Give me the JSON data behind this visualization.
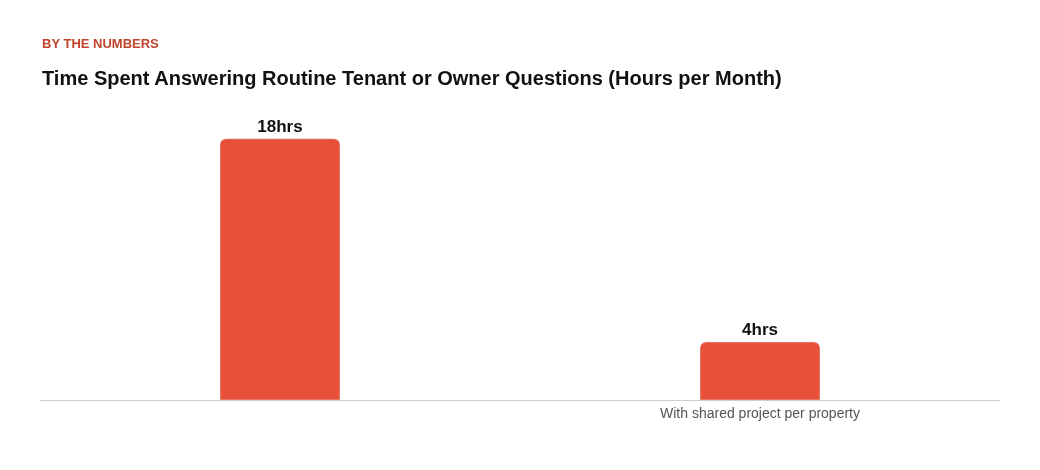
{
  "chart_data": {
    "type": "bar",
    "title": "Time Spent Answering Routine Tenant or Owner Questions (Hours per Month)",
    "annotations": [
      "BY THE NUMBERS"
    ],
    "categories": [
      null,
      "With shared project per property"
    ],
    "values": [
      18,
      4
    ],
    "value_labels": [
      "18hrs",
      "4hrs"
    ],
    "color": "#e8503a",
    "legend": false
  }
}
